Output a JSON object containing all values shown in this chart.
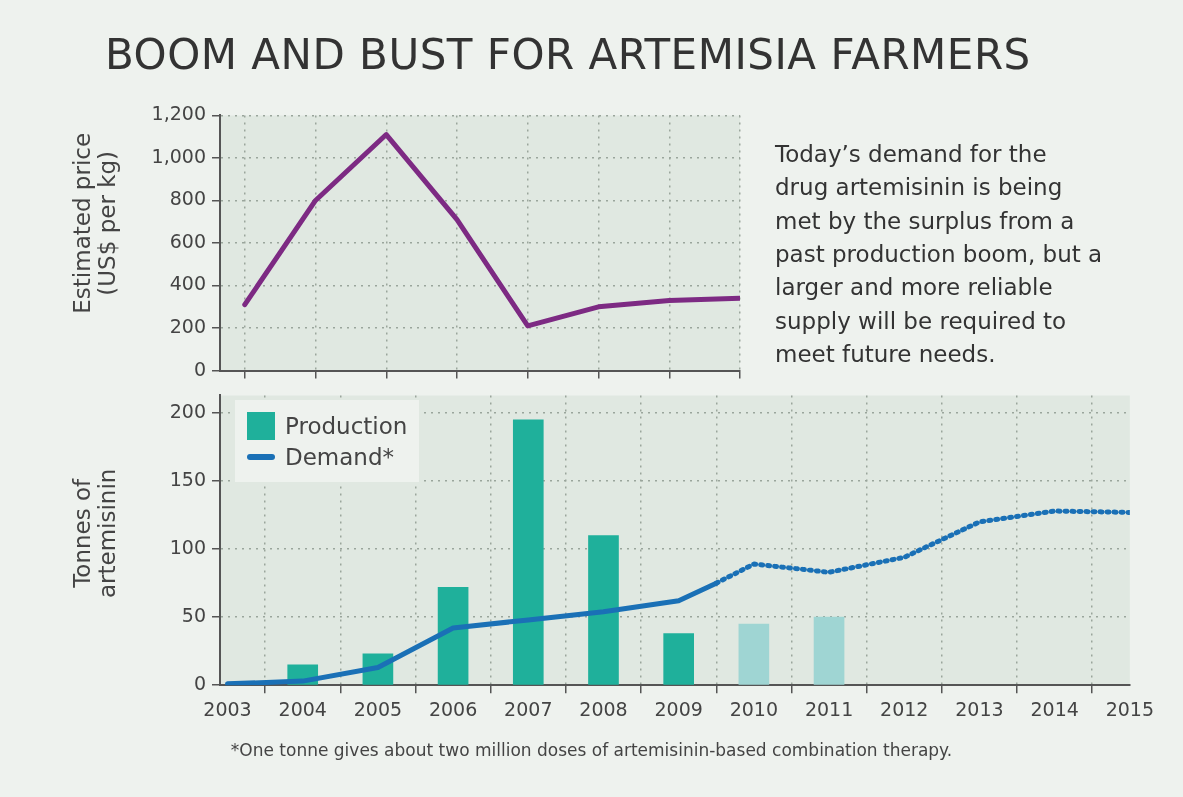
{
  "chart_data": [
    {
      "type": "line",
      "title": "BOOM AND BUST FOR ARTEMISIA FARMERS",
      "ylabel": "Estimated price (US$ per kg)",
      "categories": [
        null,
        null,
        null,
        null,
        null,
        null,
        null,
        null
      ],
      "series": [
        {
          "color": "#7d2a83",
          "values": [
            310,
            800,
            1110,
            710,
            210,
            300,
            330,
            340
          ]
        }
      ],
      "ylim": [
        0,
        1200
      ],
      "yticks": [
        0,
        200,
        400,
        600,
        800,
        {
          "value": 1000,
          "label": "1,000"
        },
        {
          "value": 1200,
          "label": "1,200"
        }
      ],
      "tick_labels": "y",
      "grid": true,
      "legend": false,
      "marker": "none",
      "annotations": [
        "Today’s demand for the drug artemisinin is being met by the surplus from a past production boom, but a larger and more reliable supply will be required to meet future needs."
      ]
    },
    {
      "type": "line",
      "ylabel": "Tonnes of artemisinin",
      "series": [
        {
          "name": "Production",
          "type": "bar",
          "color": "#1fb09b",
          "x": [
            2004,
            2005,
            2006,
            2007,
            2008,
            2009,
            2010,
            2011
          ],
          "values": [
            15,
            23,
            72,
            195,
            110,
            38,
            45,
            50
          ],
          "colors": [
            "#1fb09b",
            "#1fb09b",
            "#1fb09b",
            "#1fb09b",
            "#1fb09b",
            "#1fb09b",
            "#9fd5d3",
            "#9fd5d3"
          ]
        },
        {
          "name": "Demand*",
          "color": "#1a70b6",
          "line_style": "solid",
          "x": [
            2003,
            2004,
            2005,
            2006,
            2007,
            2008,
            2009,
            2009.5
          ],
          "values": [
            1,
            3,
            13,
            42,
            48,
            54,
            62,
            75
          ]
        },
        {
          "color": "#1a70b6",
          "line_style": "dotted",
          "x": [
            2009.5,
            2010,
            2011,
            2012,
            2013,
            2014,
            2015
          ],
          "values": [
            75,
            89,
            83,
            94,
            120,
            128,
            127
          ]
        }
      ],
      "xlim": [
        2002.9,
        2015
      ],
      "xticks": [
        2003,
        2004,
        2005,
        2006,
        2007,
        2008,
        2009,
        2010,
        2011,
        2012,
        2013,
        2014,
        2015
      ],
      "ylim": [
        0,
        213
      ],
      "yticks": [
        0,
        50,
        100,
        150,
        200
      ],
      "grid": true,
      "legend": "top left",
      "marker": "none",
      "annotations": [
        "*One tonne gives about two million doses of artemisinin-based combination therapy."
      ]
    }
  ]
}
